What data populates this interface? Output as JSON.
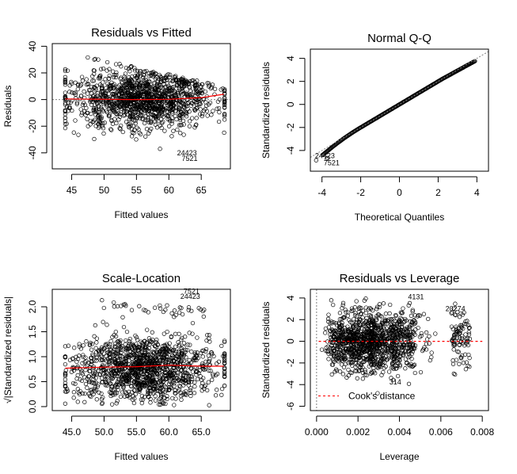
{
  "chart_data": [
    {
      "type": "scatter",
      "title": "Residuals vs Fitted",
      "xlabel": "Fitted values",
      "ylabel": "Residuals",
      "xlim": [
        42,
        69.5
      ],
      "ylim": [
        -52,
        42
      ],
      "xticks": [
        45,
        50,
        55,
        60,
        65
      ],
      "yticks": [
        -40,
        -20,
        0,
        20,
        40
      ],
      "grid": false,
      "smoother": {
        "color": "#ff0000",
        "points": [
          [
            44,
            0.5
          ],
          [
            50,
            0.2
          ],
          [
            55,
            0
          ],
          [
            60,
            0.2
          ],
          [
            65,
            1.5
          ],
          [
            68.5,
            4
          ]
        ]
      },
      "reference_line": {
        "y": 0,
        "style": "dotted",
        "color": "#808080"
      },
      "annotations": [
        {
          "text": "24423",
          "x": 62.8,
          "y": -42
        },
        {
          "text": "7521",
          "x": 63.2,
          "y": -46
        }
      ]
    },
    {
      "type": "scatter",
      "title": "Normal Q-Q",
      "xlabel": "Theoretical Quantiles",
      "ylabel": "Standardized residuals",
      "xlim": [
        -4.6,
        4.6
      ],
      "ylim": [
        -5.8,
        4.8
      ],
      "xticks": [
        -4,
        -2,
        0,
        2,
        4
      ],
      "yticks": [
        -4,
        -2,
        0,
        2,
        4
      ],
      "grid": false,
      "reference_line": {
        "slope": 1,
        "intercept": 0,
        "style": "dotted",
        "color": "#808080"
      },
      "annotations": [
        {
          "text": "24423",
          "x": -3.85,
          "y": -4.65
        },
        {
          "text": "7521",
          "x": -3.5,
          "y": -5.3
        }
      ]
    },
    {
      "type": "scatter",
      "title": "Scale-Location",
      "xlabel": "Fitted values",
      "ylabel": "√|Standardized residuals|",
      "xlim": [
        42,
        69.5
      ],
      "ylim": [
        -0.08,
        2.35
      ],
      "xticks": [
        45,
        50,
        55,
        60,
        65
      ],
      "yticks": [
        0.0,
        0.5,
        1.0,
        1.5,
        2.0
      ],
      "grid": false,
      "smoother": {
        "color": "#ff0000",
        "points": [
          [
            44,
            0.77
          ],
          [
            50,
            0.79
          ],
          [
            55,
            0.8
          ],
          [
            60,
            0.83
          ],
          [
            65,
            0.81
          ],
          [
            68.5,
            0.81
          ]
        ]
      },
      "annotations": [
        {
          "text": "7521",
          "x": 63.5,
          "y": 2.26
        },
        {
          "text": "24423",
          "x": 63.3,
          "y": 2.16
        }
      ]
    },
    {
      "type": "scatter",
      "title": "Residuals vs Leverage",
      "xlabel": "Leverage",
      "ylabel": "Standardized residuals",
      "xlim": [
        -0.0003,
        0.0083
      ],
      "ylim": [
        -6.4,
        4.8
      ],
      "xticks": [
        0.0,
        0.002,
        0.004,
        0.006,
        0.008
      ],
      "yticks": [
        -6,
        -4,
        -2,
        0,
        2,
        4
      ],
      "grid": false,
      "smoother": {
        "color": "#ff0000",
        "style": "dashed",
        "points": [
          [
            0.0001,
            0
          ],
          [
            0.008,
            0
          ]
        ]
      },
      "reference_line": {
        "x": 0,
        "style": "dotted",
        "color": "#808080"
      },
      "legend": {
        "text": "Cook's distance",
        "position": "bottom-left",
        "style": "dashed",
        "color": "#ff0000"
      },
      "annotations": [
        {
          "text": "4131",
          "x": 0.0048,
          "y": 3.9
        },
        {
          "text": "20274",
          "x": 0.0067,
          "y": 2.8
        },
        {
          "text": "314",
          "x": 0.0038,
          "y": -4.0
        }
      ]
    }
  ]
}
